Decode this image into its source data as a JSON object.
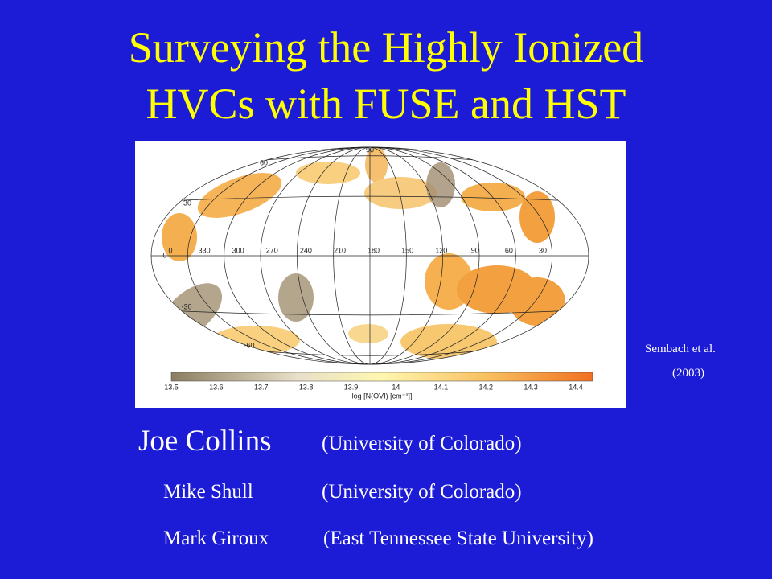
{
  "title": [
    "Surveying the Highly Ionized",
    "HVCs with FUSE and HST"
  ],
  "figure": {
    "latitude_labels": [
      "90",
      "60",
      "30",
      "0",
      "-30",
      "-60"
    ],
    "longitude_labels": [
      "0",
      "330",
      "300",
      "270",
      "240",
      "210",
      "180",
      "150",
      "120",
      "90",
      "60",
      "30"
    ],
    "colorbar_ticks": [
      "13.5",
      "13.6",
      "13.7",
      "13.8",
      "13.9",
      "14",
      "14.1",
      "14.2",
      "14.3",
      "14.4"
    ],
    "colorbar_label": "log [N(OVI) [cm⁻²]]"
  },
  "citation": [
    "Sembach et al.",
    "(2003)"
  ],
  "authors": [
    {
      "name": "Joe Collins",
      "affiliation": "(University of Colorado)"
    },
    {
      "name": "Mike Shull",
      "affiliation": "(University of Colorado)"
    },
    {
      "name": "Mark Giroux",
      "affiliation": "(East Tennessee State University)"
    }
  ]
}
